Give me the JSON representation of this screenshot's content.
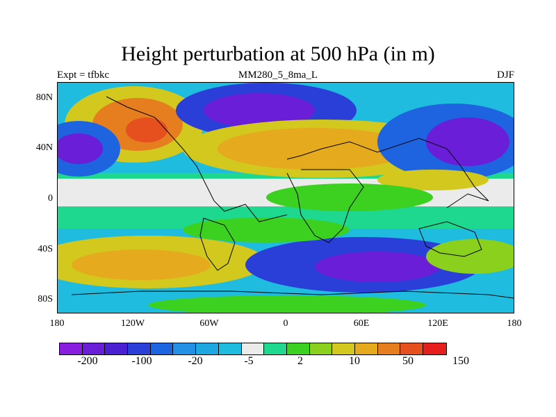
{
  "figure": {
    "title": "Height perturbation at 500 hPa (in m)",
    "left_label": "Expt = tfbkc",
    "center_label": "MM280_5_8ma_L",
    "right_label": "DJF"
  },
  "axes": {
    "lat_labels": [
      "80N",
      "40N",
      "0",
      "40S",
      "80S"
    ],
    "lon_labels": [
      "180",
      "120W",
      "60W",
      "0",
      "60E",
      "120E",
      "180"
    ]
  },
  "colorbar": {
    "colors": [
      "#8a1ee0",
      "#6a1ed8",
      "#4a20d2",
      "#2a3ed8",
      "#1e64e0",
      "#2390e6",
      "#1ea8e2",
      "#20bce0",
      "#ebebeb",
      "#1ed890",
      "#3cd020",
      "#8cd01e",
      "#d2c81e",
      "#e6aa1e",
      "#e67d1e",
      "#e6501e",
      "#e61e1e"
    ],
    "labels": [
      "-200",
      "-100",
      "-20",
      "-5",
      "2",
      "10",
      "50",
      "150"
    ]
  },
  "map": {
    "fill_colors": {
      "deep_negative": "#6a1ed8",
      "strong_negative": "#2a3ed8",
      "moderate_negative": "#1e64e0",
      "weak_negative": "#20bce0",
      "neutral": "#ebebeb",
      "weak_positive": "#1ed890",
      "low_positive": "#3cd020",
      "mid_positive": "#8cd01e",
      "high_positive": "#d2c81e",
      "strong_positive": "#e6aa1e",
      "very_strong_positive": "#e67d1e",
      "max_positive": "#e6501e"
    }
  }
}
